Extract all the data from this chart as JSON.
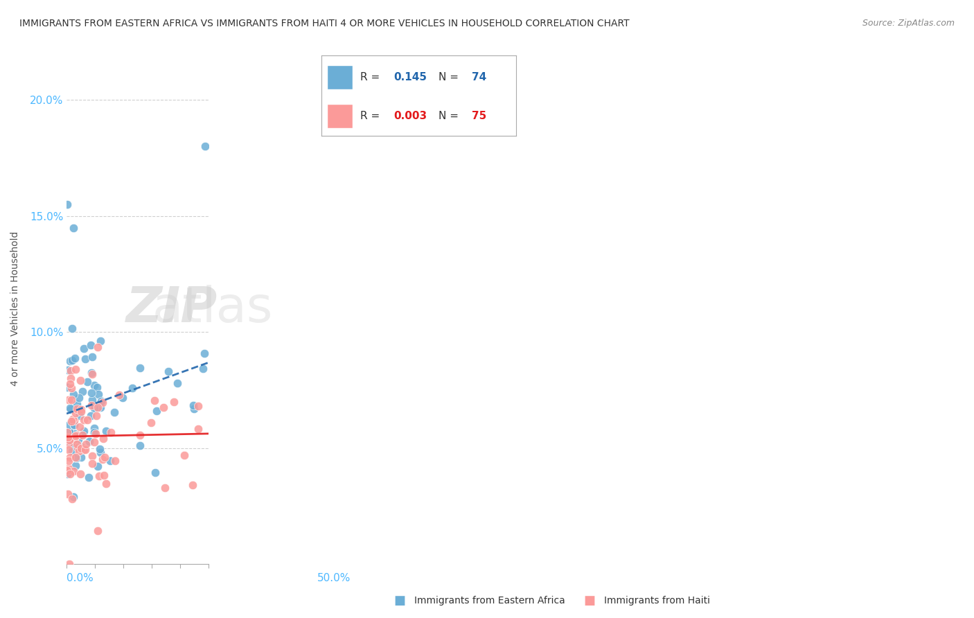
{
  "title": "IMMIGRANTS FROM EASTERN AFRICA VS IMMIGRANTS FROM HAITI 4 OR MORE VEHICLES IN HOUSEHOLD CORRELATION CHART",
  "source": "Source: ZipAtlas.com",
  "ylabel": "4 or more Vehicles in Household",
  "y_tick_labels": [
    "5.0%",
    "10.0%",
    "15.0%",
    "20.0%"
  ],
  "y_tick_values": [
    0.05,
    0.1,
    0.15,
    0.2
  ],
  "xlim": [
    0.0,
    0.5
  ],
  "ylim": [
    0.0,
    0.22
  ],
  "series1_label": "Immigrants from Eastern Africa",
  "series2_label": "Immigrants from Haiti",
  "color1": "#6baed6",
  "color2": "#fb9a99",
  "trend1_color": "#2166ac",
  "trend2_color": "#e31a1c",
  "watermark_zip": "ZIP",
  "watermark_atlas": "atlas",
  "r1": "0.145",
  "n1": "74",
  "r2": "0.003",
  "n2": "75"
}
